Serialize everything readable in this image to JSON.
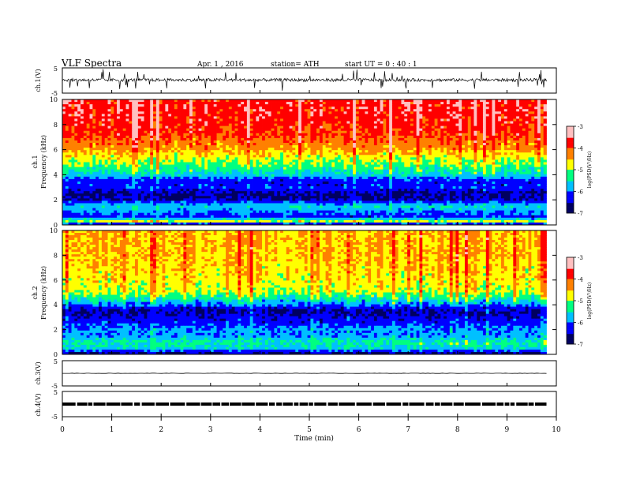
{
  "header": {
    "title": "VLF  Spectra",
    "date": "Apr. 1  , 2016",
    "station": "station= ATH",
    "start": "start  UT  =   0  : 40 : 1"
  },
  "chart_data": [
    {
      "type": "line",
      "panel": "ch1-waveform",
      "ylabel": "ch.1(V)",
      "yticks": [
        "5",
        "-5"
      ],
      "ylim": [
        -5,
        5
      ],
      "xlim": [
        0,
        10
      ]
    },
    {
      "type": "heatmap",
      "panel": "ch1-spectrogram",
      "ylabel": "ch.1\nFrequency  (kHz)",
      "ylabel_lines": [
        "ch.1",
        "Frequency  (kHz)"
      ],
      "yticks": [
        "0",
        "2",
        "4",
        "6",
        "8",
        "10"
      ],
      "ylim": [
        0,
        10
      ],
      "xlim": [
        0,
        9.8
      ],
      "colorbar": {
        "label": "log(PSD(V²/Hz)",
        "ticks": [
          "-3",
          "-4",
          "-5",
          "-6",
          "-7"
        ],
        "range": [
          -7,
          -3
        ],
        "colors": [
          "#000060",
          "#0000ff",
          "#00c0ff",
          "#00ff80",
          "#ffff00",
          "#ff8000",
          "#ff0000",
          "#ffc0c0"
        ]
      },
      "profile_log_psd": [
        {
          "f": 0.0,
          "v": -6.8
        },
        {
          "f": 0.3,
          "v": -4.8
        },
        {
          "f": 0.6,
          "v": -6.3
        },
        {
          "f": 1.0,
          "v": -6.0
        },
        {
          "f": 1.5,
          "v": -5.6
        },
        {
          "f": 2.0,
          "v": -6.5
        },
        {
          "f": 2.5,
          "v": -6.6
        },
        {
          "f": 3.0,
          "v": -6.2
        },
        {
          "f": 3.5,
          "v": -6.3
        },
        {
          "f": 4.0,
          "v": -5.6
        },
        {
          "f": 4.5,
          "v": -5.3
        },
        {
          "f": 5.0,
          "v": -5.0
        },
        {
          "f": 5.5,
          "v": -4.7
        },
        {
          "f": 6.0,
          "v": -4.4
        },
        {
          "f": 7.0,
          "v": -4.0
        },
        {
          "f": 8.0,
          "v": -3.8
        },
        {
          "f": 9.0,
          "v": -3.7
        },
        {
          "f": 10.0,
          "v": -3.7
        }
      ]
    },
    {
      "type": "heatmap",
      "panel": "ch2-spectrogram",
      "ylabel": "ch.2\nFrequency  (kHz)",
      "ylabel_lines": [
        "ch.2",
        "Frequency  (kHz)"
      ],
      "yticks": [
        "0",
        "2",
        "4",
        "6",
        "8",
        "10"
      ],
      "ylim": [
        0,
        10
      ],
      "xlim": [
        0,
        9.8
      ],
      "colorbar": {
        "label": "log(PSD(V²/Hz)",
        "ticks": [
          "-3",
          "-4",
          "-5",
          "-6",
          "-7"
        ],
        "range": [
          -7,
          -3
        ],
        "colors": [
          "#000060",
          "#0000ff",
          "#00c0ff",
          "#00ff80",
          "#ffff00",
          "#ff8000",
          "#ff0000",
          "#ffc0c0"
        ]
      },
      "profile_log_psd": [
        {
          "f": 0.0,
          "v": -6.8
        },
        {
          "f": 0.5,
          "v": -5.6
        },
        {
          "f": 1.0,
          "v": -5.4
        },
        {
          "f": 1.5,
          "v": -5.9
        },
        {
          "f": 2.0,
          "v": -5.9
        },
        {
          "f": 2.5,
          "v": -6.2
        },
        {
          "f": 3.0,
          "v": -6.4
        },
        {
          "f": 3.5,
          "v": -6.6
        },
        {
          "f": 4.0,
          "v": -6.0
        },
        {
          "f": 4.5,
          "v": -5.4
        },
        {
          "f": 5.0,
          "v": -4.9
        },
        {
          "f": 6.0,
          "v": -4.7
        },
        {
          "f": 7.0,
          "v": -4.6
        },
        {
          "f": 8.0,
          "v": -4.5
        },
        {
          "f": 9.0,
          "v": -4.5
        },
        {
          "f": 10.0,
          "v": -4.5
        }
      ]
    },
    {
      "type": "line",
      "panel": "ch3-waveform",
      "ylabel": "ch.3(V)",
      "yticks": [
        "5",
        "-5"
      ],
      "ylim": [
        -5,
        5
      ],
      "xlim": [
        0,
        10
      ]
    },
    {
      "type": "line",
      "panel": "ch4-waveform",
      "ylabel": "ch.4(V)",
      "yticks": [
        "5",
        "-5"
      ],
      "ylim": [
        -5,
        5
      ],
      "xlim": [
        0,
        10
      ],
      "xlabel": "Time  (min)",
      "xticks": [
        "0",
        "1",
        "2",
        "3",
        "4",
        "5",
        "6",
        "7",
        "8",
        "9",
        "10"
      ]
    }
  ]
}
